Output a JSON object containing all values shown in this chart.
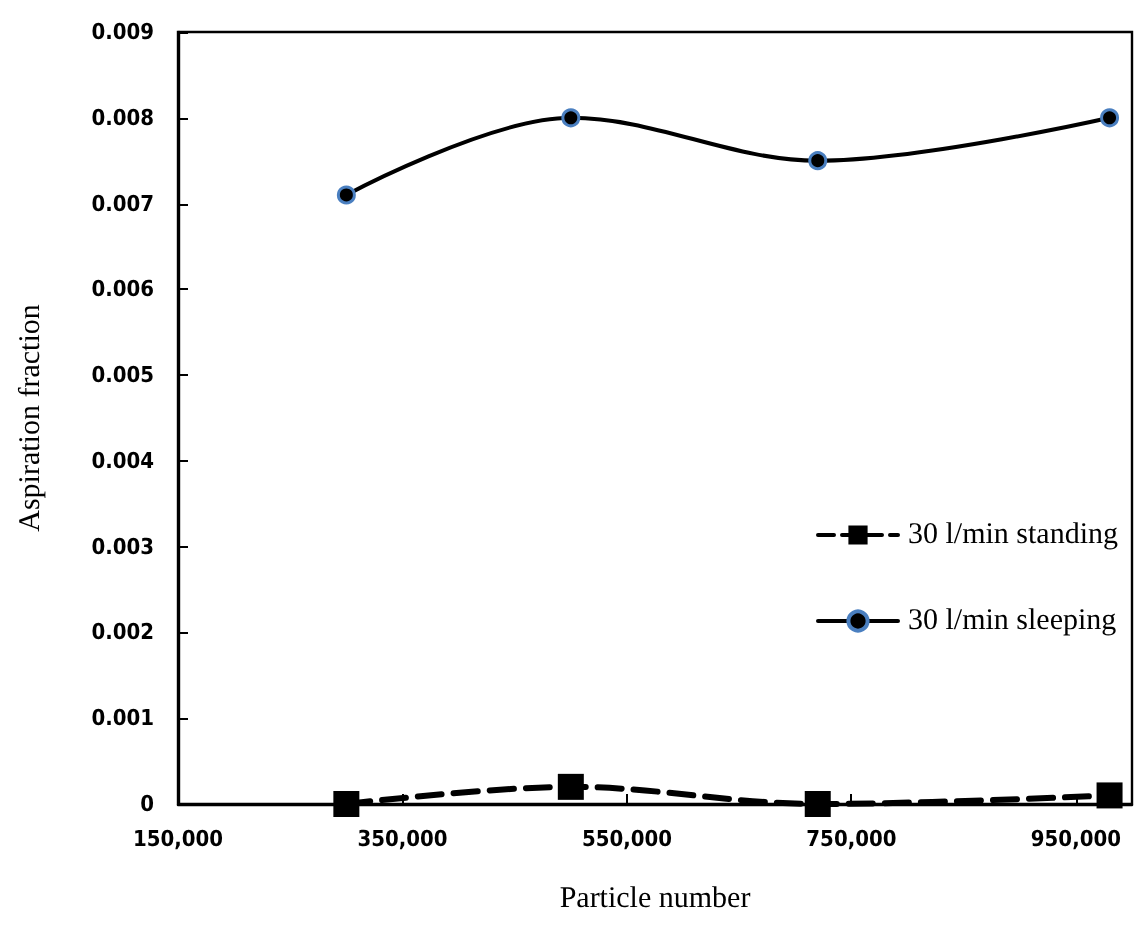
{
  "chart_data": {
    "type": "line",
    "xlabel": "Particle number",
    "ylabel": "Aspiration fraction",
    "xlim": [
      150000,
      1000000
    ],
    "xticks": [
      {
        "value": 150000,
        "label": "150,000"
      },
      {
        "value": 350000,
        "label": "350,000"
      },
      {
        "value": 550000,
        "label": "550,000"
      },
      {
        "value": 750000,
        "label": "750,000"
      },
      {
        "value": 950000,
        "label": "950,000"
      }
    ],
    "ylim": [
      0,
      0.009
    ],
    "yticks": [
      0,
      0.001,
      0.002,
      0.003,
      0.004,
      0.005,
      0.006,
      0.007,
      0.008,
      0.009
    ],
    "x": [
      300000,
      500000,
      720000,
      980000
    ],
    "series": [
      {
        "name": "30 l/min standing",
        "color": "#000000",
        "values": [
          0,
          0.0002,
          0,
          0.0001
        ],
        "marker": "square",
        "line_style": "dashed"
      },
      {
        "name": "30 l/min sleeping",
        "color": "#000000",
        "values": [
          0.0071,
          0.008,
          0.0075,
          0.008
        ],
        "marker": "circle",
        "line_style": "solid"
      }
    ],
    "grid": false,
    "legend": "right"
  }
}
